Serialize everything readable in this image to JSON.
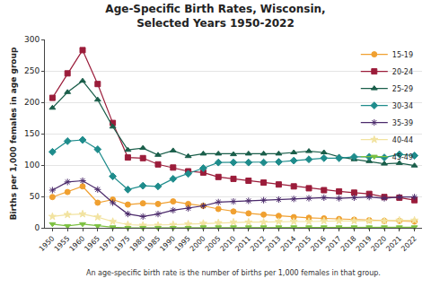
{
  "chart_data": {
    "type": "line",
    "title": "Age-Specific Birth Rates, Wisconsin,\nSelected Years 1950-2022",
    "y_label": "Births per 1,000 females in age group",
    "annotations": [
      "An age-specific birth rate is the number of births per 1,000 females in that group."
    ],
    "categories": [
      "1950",
      "1955",
      "1960",
      "1965",
      "1970",
      "1975",
      "1980",
      "1985",
      "1990",
      "1995",
      "2000",
      "2005",
      "2010",
      "2011",
      "2012",
      "2013",
      "2014",
      "2015",
      "2016",
      "2017",
      "2018",
      "2019",
      "2020",
      "2021",
      "2022"
    ],
    "series": [
      {
        "name": "15-19",
        "color": "#f0a030",
        "marker": "circle",
        "values": [
          49,
          57,
          66,
          40,
          45,
          37,
          39,
          38,
          42,
          38,
          35,
          30,
          26,
          23,
          21,
          19,
          17,
          16,
          15,
          14,
          13,
          12,
          11,
          11,
          10
        ]
      },
      {
        "name": "20-24",
        "color": "#9b1c3a",
        "marker": "square",
        "values": [
          207,
          246,
          283,
          229,
          167,
          112,
          111,
          101,
          96,
          90,
          88,
          81,
          78,
          75,
          72,
          69,
          66,
          63,
          60,
          58,
          56,
          54,
          49,
          48,
          44
        ]
      },
      {
        "name": "25-29",
        "color": "#1a5e4a",
        "marker": "triangle-up",
        "values": [
          191,
          216,
          234,
          204,
          161,
          124,
          127,
          116,
          123,
          114,
          118,
          118,
          117,
          118,
          118,
          118,
          120,
          122,
          120,
          113,
          109,
          106,
          102,
          103,
          99
        ]
      },
      {
        "name": "30-34",
        "color": "#1e8c8c",
        "marker": "diamond",
        "values": [
          121,
          138,
          140,
          125,
          82,
          61,
          67,
          66,
          78,
          86,
          95,
          104,
          104,
          104,
          104,
          105,
          107,
          109,
          111,
          111,
          113,
          113,
          112,
          117,
          115
        ]
      },
      {
        "name": "35-39",
        "color": "#4b2a6b",
        "marker": "asterisk-open",
        "values": [
          60,
          73,
          75,
          61,
          40,
          22,
          18,
          22,
          28,
          31,
          35,
          41,
          42,
          43,
          44,
          45,
          46,
          47,
          48,
          47,
          48,
          49,
          47,
          49,
          49
        ]
      },
      {
        "name": "40-44",
        "color": "#f2e3a0",
        "marker": "star",
        "values": [
          18,
          21,
          22,
          17,
          10,
          5,
          4,
          4,
          5,
          6,
          7,
          8,
          9,
          9,
          9,
          10,
          10,
          10,
          11,
          11,
          11,
          11,
          11,
          12,
          12
        ]
      },
      {
        "name": "45-49",
        "color": "#7dc142",
        "marker": "triangle-down",
        "values": [
          6,
          3,
          6,
          3,
          1,
          0,
          0,
          0,
          0,
          0,
          1,
          1,
          1,
          1,
          1,
          1,
          1,
          1,
          1,
          1,
          1,
          1,
          1,
          1,
          1
        ]
      }
    ],
    "ylim": [
      0,
      300
    ],
    "yticks": [
      0,
      50,
      100,
      150,
      200,
      250,
      300
    ],
    "grid": true,
    "legend": "top right"
  }
}
